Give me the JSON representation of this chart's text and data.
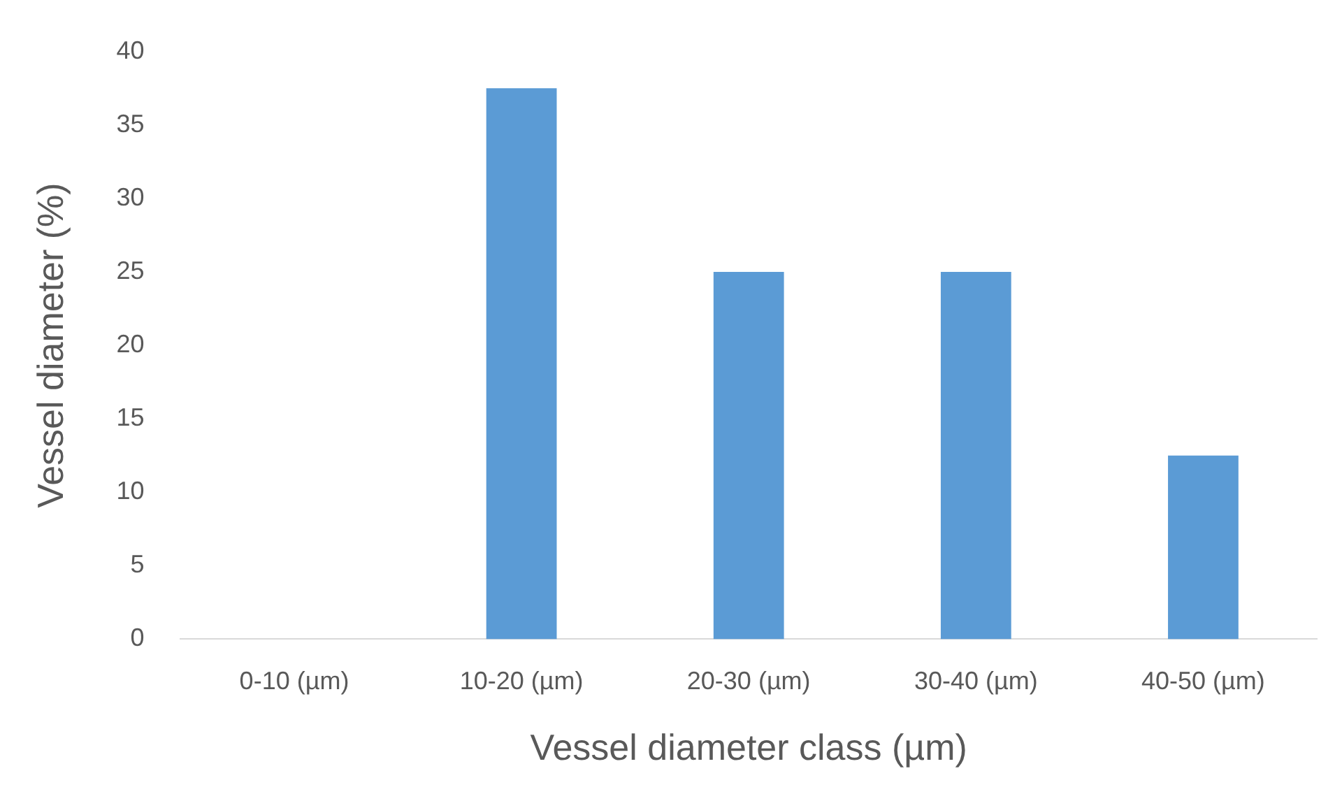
{
  "chart_data": {
    "type": "bar",
    "xlabel": "Vessel diameter class (µm)",
    "ylabel": "Vessel diameter (%)",
    "categories": [
      "0-10 (µm)",
      "10-20 (µm)",
      "20-30 (µm)",
      "30-40 (µm)",
      "40-50 (µm)"
    ],
    "values": [
      0,
      37.5,
      25,
      25,
      12.5
    ],
    "color": "#5b9bd5",
    "ylim": [
      0,
      40
    ],
    "yticks": [
      0,
      5,
      10,
      15,
      20,
      25,
      30,
      35,
      40
    ],
    "grid": false,
    "legend": false
  }
}
